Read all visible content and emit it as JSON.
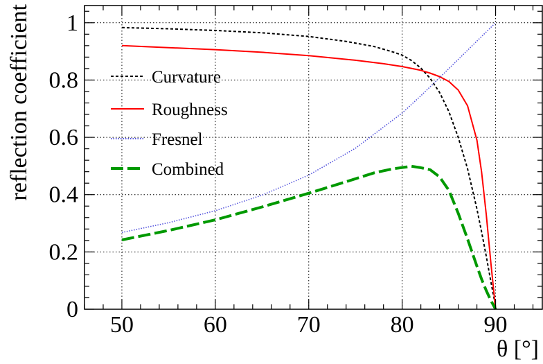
{
  "chart_data": {
    "type": "line",
    "title": "",
    "xlabel": "θ [°]",
    "ylabel": "reflection coefficient",
    "xlim": [
      46,
      95
    ],
    "ylim": [
      0,
      1.06
    ],
    "x_ticks": [
      50,
      60,
      70,
      80,
      90
    ],
    "y_ticks": [
      0,
      0.2,
      0.4,
      0.6,
      0.8,
      1
    ],
    "x_tick_labels": [
      "50",
      "60",
      "70",
      "80",
      "90"
    ],
    "y_tick_labels": [
      "0",
      "0.2",
      "0.4",
      "0.6",
      "0.8",
      "1"
    ],
    "grid": true,
    "legend": "top-left",
    "series": [
      {
        "name": "Curvature",
        "color": "#000000",
        "style": "dashed",
        "x": [
          50,
          55,
          60,
          65,
          70,
          74,
          77,
          79,
          80,
          81,
          82,
          83,
          84,
          85,
          86,
          87,
          88,
          88.5,
          89,
          89.5,
          90
        ],
        "y": [
          0.983,
          0.979,
          0.973,
          0.965,
          0.952,
          0.935,
          0.917,
          0.898,
          0.887,
          0.868,
          0.842,
          0.806,
          0.757,
          0.69,
          0.6,
          0.49,
          0.35,
          0.27,
          0.185,
          0.095,
          0.01
        ]
      },
      {
        "name": "Roughness",
        "color": "#ff0000",
        "style": "solid",
        "x": [
          50,
          55,
          60,
          65,
          70,
          75,
          78,
          80,
          82,
          83,
          84,
          85,
          86,
          87,
          88,
          88.5,
          89,
          89.5,
          90
        ],
        "y": [
          0.92,
          0.913,
          0.906,
          0.897,
          0.885,
          0.869,
          0.857,
          0.847,
          0.834,
          0.824,
          0.812,
          0.795,
          0.765,
          0.71,
          0.59,
          0.48,
          0.33,
          0.16,
          0.0
        ]
      },
      {
        "name": "Fresnel",
        "color": "#5555dd",
        "style": "dotted",
        "x": [
          50,
          55,
          60,
          65,
          70,
          75,
          80,
          82,
          84,
          86,
          88,
          90
        ],
        "y": [
          0.268,
          0.302,
          0.344,
          0.398,
          0.468,
          0.562,
          0.685,
          0.745,
          0.808,
          0.872,
          0.936,
          1.0
        ]
      },
      {
        "name": "Combined",
        "color": "#009900",
        "style": "long-dash",
        "x": [
          50,
          55,
          60,
          65,
          70,
          74,
          77,
          79,
          81,
          82,
          83,
          84,
          85,
          86,
          87,
          88,
          88.5,
          89,
          89.5,
          90
        ],
        "y": [
          0.242,
          0.275,
          0.312,
          0.357,
          0.405,
          0.445,
          0.476,
          0.49,
          0.499,
          0.494,
          0.487,
          0.462,
          0.415,
          0.335,
          0.245,
          0.15,
          0.105,
          0.065,
          0.03,
          0.0
        ]
      }
    ]
  }
}
